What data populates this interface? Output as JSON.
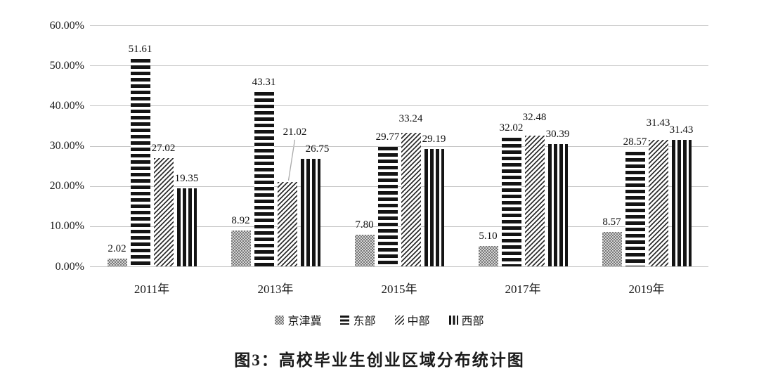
{
  "figure": {
    "caption": "图3：高校毕业生创业区域分布统计图"
  },
  "chart_data": {
    "type": "bar",
    "title": "图3：高校毕业生创业区域分布统计图",
    "categories": [
      "2011年",
      "2013年",
      "2015年",
      "2017年",
      "2019年"
    ],
    "series": [
      {
        "name": "京津冀",
        "slug": "jingjinji",
        "pattern": "gray-checker",
        "values": [
          2.02,
          8.92,
          7.8,
          5.1,
          8.57
        ]
      },
      {
        "name": "东部",
        "slug": "east",
        "pattern": "horizontal-stripes",
        "values": [
          51.61,
          43.31,
          29.77,
          32.02,
          28.57
        ]
      },
      {
        "name": "中部",
        "slug": "central",
        "pattern": "diagonal-stripes",
        "values": [
          27.02,
          21.02,
          33.24,
          32.48,
          31.43
        ]
      },
      {
        "name": "西部",
        "slug": "west",
        "pattern": "vertical-stripes",
        "values": [
          19.35,
          26.75,
          29.19,
          30.39,
          31.43
        ]
      }
    ],
    "y_axis": {
      "min": 0,
      "max": 60,
      "step": 10,
      "tick_labels": [
        "0.00%",
        "10.00%",
        "20.00%",
        "30.00%",
        "40.00%",
        "50.00%",
        "60.00%"
      ]
    },
    "xlabel": "",
    "ylabel": "",
    "grid": true,
    "value_labels": true,
    "value_label_decimals": 2,
    "legend_position": "bottom",
    "colors": {
      "bar_dark": "#141414",
      "checker_gray": "#787878",
      "gridline": "#c6c6c6",
      "leader_line": "#a9a9a9"
    },
    "annotations": [
      {
        "type": "leader-line",
        "category": "2013年",
        "series": "中部",
        "value": 21.02,
        "note": "value label displaced upward with thin leader line to bar top"
      }
    ]
  }
}
